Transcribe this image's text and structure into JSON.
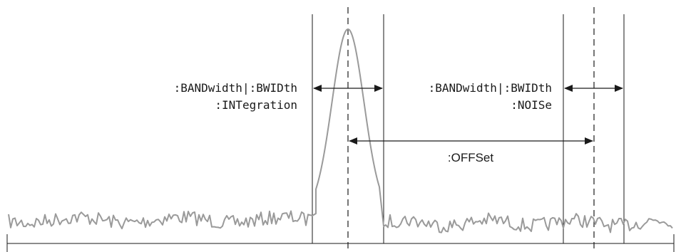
{
  "labels": {
    "integration_line1": ":BANDwidth|:BWIDth",
    "integration_line2": ":INTegration",
    "noise_line1": ":BANDwidth|:BWIDth",
    "noise_line2": ":NOISe",
    "offset": ":OFFSet"
  },
  "colors": {
    "ink": "#1a1a1a",
    "trace": "#9a9a9a",
    "background": "#ffffff"
  }
}
